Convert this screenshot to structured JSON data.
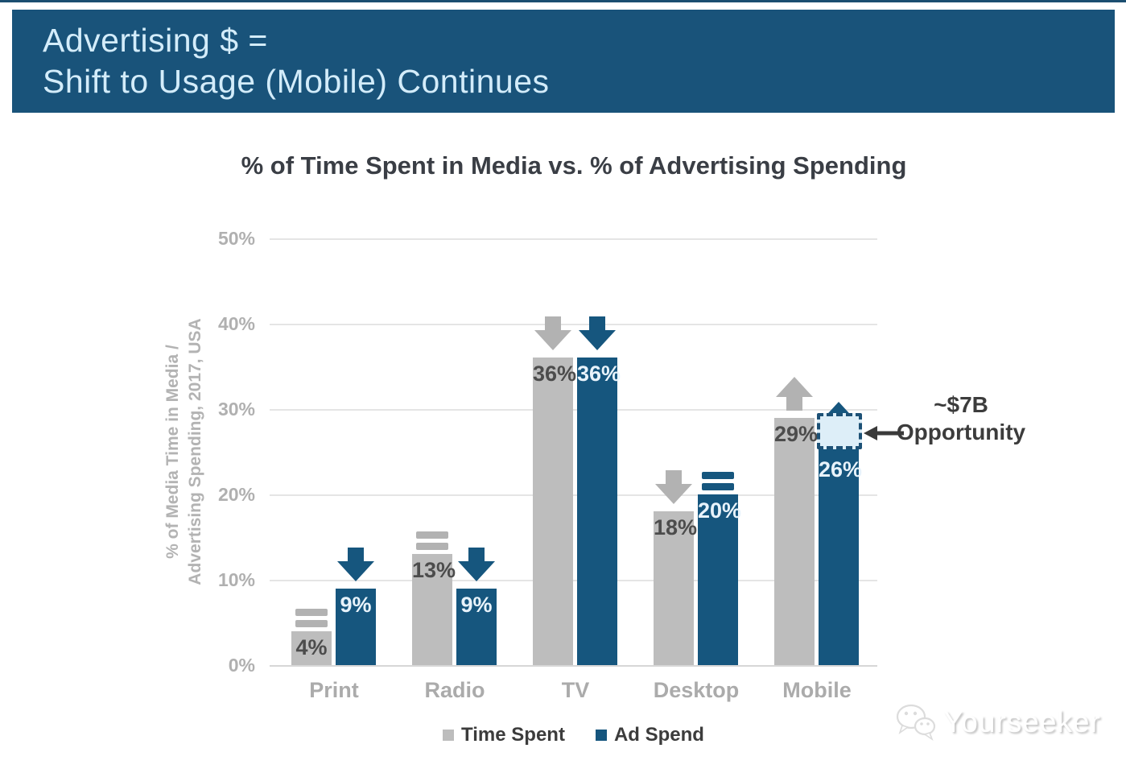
{
  "banner": {
    "line1": "Advertising $ =",
    "line2": "Shift to Usage (Mobile) Continues"
  },
  "chart_data": {
    "type": "bar",
    "title": "% of Time Spent in Media vs. % of Advertising Spending",
    "ylabel_line1": "% of Media Time in Media /",
    "ylabel_line2": "Advertising Spending, 2017, USA",
    "categories": [
      "Print",
      "Radio",
      "TV",
      "Desktop",
      "Mobile"
    ],
    "series": [
      {
        "name": "Time Spent",
        "color": "#bdbdbd",
        "values": [
          4,
          13,
          36,
          18,
          29
        ],
        "trend": [
          "equals",
          "equals",
          "down",
          "down",
          "up"
        ],
        "trend_color": "#b2b2b2"
      },
      {
        "name": "Ad Spend",
        "color": "#16567e",
        "values": [
          9,
          9,
          36,
          20,
          26
        ],
        "trend": [
          "down",
          "down",
          "down",
          "equals",
          "up"
        ],
        "trend_color": "#16567e"
      }
    ],
    "value_suffix": "%",
    "ylim": [
      0,
      50
    ],
    "yticks": [
      0,
      10,
      20,
      30,
      40,
      50
    ],
    "ytick_suffix": "%",
    "grid": true,
    "legend_position": "bottom"
  },
  "annotation": {
    "line1": "~$7B",
    "line2": "Opportunity",
    "category": "Mobile",
    "series": "Ad Spend",
    "gap_from_value": 26,
    "gap_to_value": 29.5,
    "box_fill": "#ddeef8",
    "box_border": "#1d5176"
  },
  "watermark": {
    "text": "Yourseeker"
  },
  "colors": {
    "banner_bg": "#19537a",
    "banner_text": "#d3ecfa",
    "bar_gray": "#bdbdbd",
    "bar_blue": "#16567e",
    "grid": "#e5e5e5",
    "axis_text": "#b0b0b0",
    "dark_text": "#3a3e45"
  }
}
